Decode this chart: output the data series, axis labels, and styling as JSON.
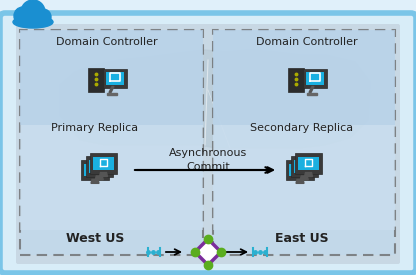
{
  "bg_color": "#e0f0fa",
  "outer_border_color": "#7ac5e8",
  "outer_fill": "#d0e8f5",
  "inner_fill_left": "#c2d9ed",
  "inner_fill_right": "#c2d9ed",
  "domain_fill": "#b5cfe6",
  "replica_fill": "#cde0f0",
  "map_fill": "#c0d5e5",
  "map_outline": "#a0b8cc",
  "dashed_color": "#666666",
  "text_color": "#222222",
  "west_label": "West US",
  "east_label": "East US",
  "left_top_label": "Domain Controller",
  "right_top_label": "Domain Controller",
  "primary_label": "Primary Replica",
  "secondary_label": "Secondary Replica",
  "async_line1": "Asynchronous",
  "async_line2": "Commit",
  "arrow_color": "#111111",
  "cloud_blue": "#1a8fd1",
  "diamond_purple": "#7b2d9b",
  "diamond_green": "#5aad1e",
  "dots_green": "#5aad1e",
  "dots_cyan": "#2ab0d0"
}
